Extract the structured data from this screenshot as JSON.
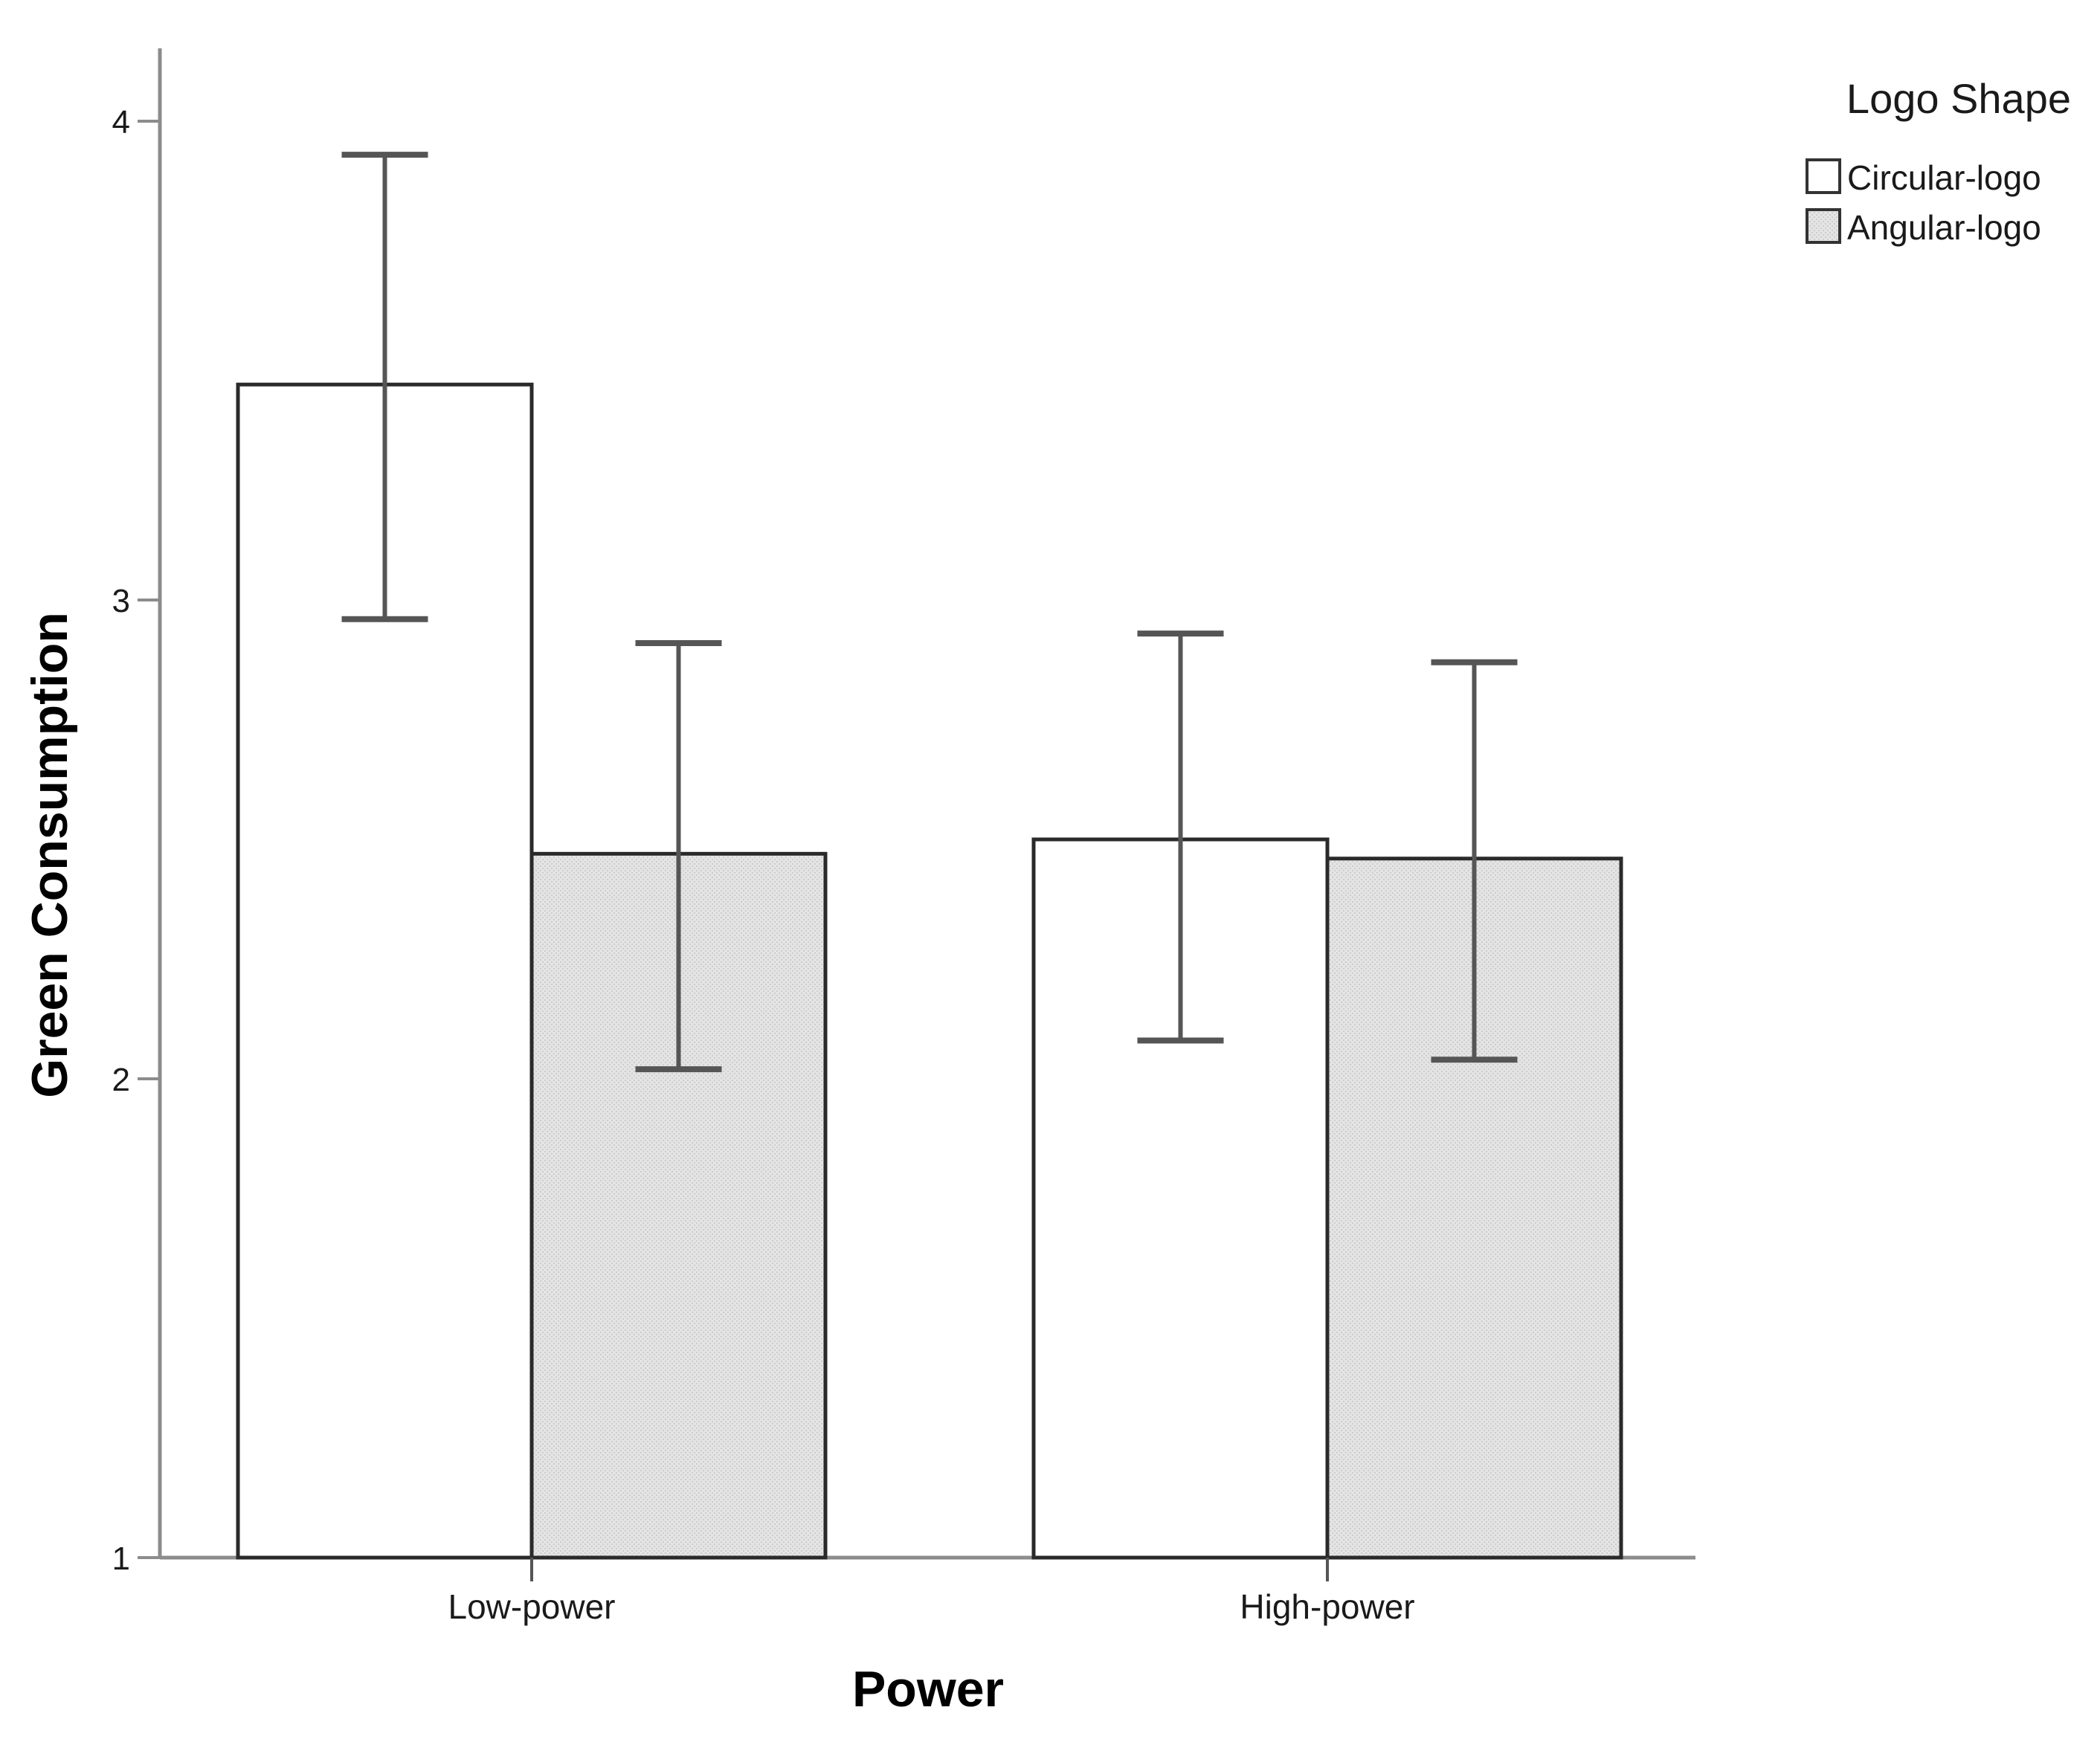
{
  "chart_data": {
    "type": "bar",
    "xlabel": "Power",
    "ylabel": "Green Consumption",
    "categories": [
      "Low-power",
      "High-power"
    ],
    "ylim": [
      1,
      4.2
    ],
    "yticks": [
      1,
      2,
      3,
      4
    ],
    "legend": {
      "title": "Logo Shape",
      "position": "top-right"
    },
    "series": [
      {
        "name": "Circular-logo",
        "color": "#ffffff",
        "values": [
          3.45,
          2.5
        ],
        "error_low": [
          2.96,
          2.08
        ],
        "error_high": [
          3.93,
          2.93
        ]
      },
      {
        "name": "Angular-logo",
        "color": "#e4e4e4",
        "values": [
          2.47,
          2.46
        ],
        "error_low": [
          2.02,
          2.04
        ],
        "error_high": [
          2.91,
          2.87
        ]
      }
    ],
    "grid": false
  }
}
